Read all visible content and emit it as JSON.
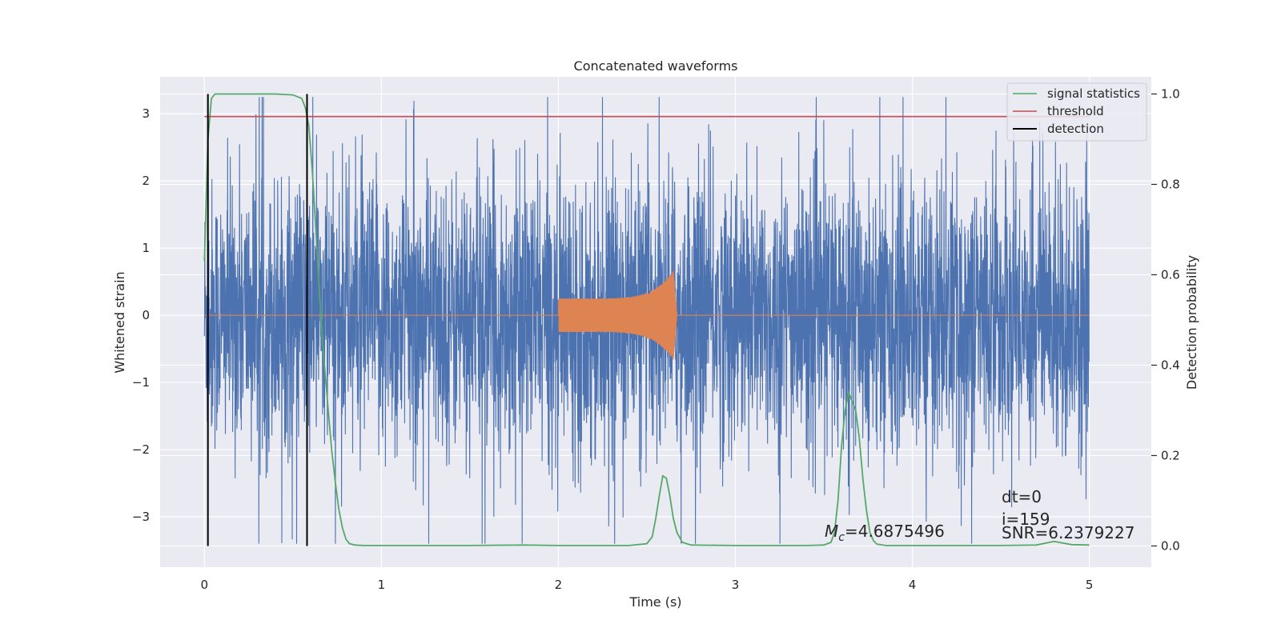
{
  "chart_data": {
    "type": "line",
    "title": "Concatenated waveforms",
    "xlabel": "Time (s)",
    "ylabel": "Whitened strain",
    "y2label": "Detection probability",
    "xlim": [
      -0.25,
      5.35
    ],
    "ylim": [
      -3.75,
      3.55
    ],
    "y2lim": [
      -0.047,
      1.038
    ],
    "x_ticks": [
      0,
      1,
      2,
      3,
      4,
      5
    ],
    "y_ticks": [
      -3,
      -2,
      -1,
      0,
      1,
      2,
      3
    ],
    "y2_ticks": [
      0.0,
      0.2,
      0.4,
      0.6,
      0.8,
      1.0
    ],
    "x_tick_labels": [
      "0",
      "1",
      "2",
      "3",
      "4",
      "5"
    ],
    "y_tick_labels": [
      "−3",
      "−2",
      "−1",
      "0",
      "1",
      "2",
      "3"
    ],
    "y2_tick_labels": [
      "0.0",
      "0.2",
      "0.4",
      "0.6",
      "0.8",
      "1.0"
    ],
    "grid": true,
    "legend_position": "top-right",
    "series": [
      {
        "name": "signal statistics",
        "color": "#55a868",
        "axis": "right",
        "x": [
          0.0,
          0.02,
          0.04,
          0.06,
          0.08,
          0.1,
          0.15,
          0.2,
          0.3,
          0.4,
          0.5,
          0.55,
          0.57,
          0.59,
          0.61,
          0.63,
          0.65,
          0.67,
          0.7,
          0.72,
          0.74,
          0.76,
          0.78,
          0.8,
          0.82,
          0.85,
          0.9,
          1.0,
          1.5,
          1.8,
          2.0,
          2.4,
          2.5,
          2.53,
          2.55,
          2.57,
          2.59,
          2.61,
          2.63,
          2.65,
          2.67,
          2.7,
          2.75,
          3.0,
          3.4,
          3.5,
          3.54,
          3.56,
          3.58,
          3.6,
          3.62,
          3.64,
          3.66,
          3.68,
          3.7,
          3.72,
          3.74,
          3.76,
          3.78,
          3.8,
          3.85,
          4.0,
          4.5,
          4.7,
          4.8,
          4.9,
          5.0
        ],
        "values": [
          0.63,
          0.9,
          0.99,
          1.0,
          1.0,
          1.0,
          1.0,
          1.0,
          1.0,
          1.0,
          0.998,
          0.99,
          0.97,
          0.93,
          0.83,
          0.7,
          0.56,
          0.44,
          0.3,
          0.21,
          0.14,
          0.08,
          0.04,
          0.015,
          0.005,
          0.002,
          0.001,
          0.001,
          0.001,
          0.002,
          0.001,
          0.001,
          0.005,
          0.02,
          0.06,
          0.11,
          0.155,
          0.15,
          0.11,
          0.06,
          0.03,
          0.008,
          0.002,
          0.001,
          0.001,
          0.002,
          0.008,
          0.03,
          0.1,
          0.22,
          0.3,
          0.34,
          0.32,
          0.3,
          0.24,
          0.15,
          0.08,
          0.03,
          0.012,
          0.004,
          0.001,
          0.001,
          0.001,
          0.002,
          0.01,
          0.003,
          0.002
        ]
      },
      {
        "name": "threshold",
        "color": "#c44e52",
        "axis": "right",
        "x": [
          0.0,
          5.0
        ],
        "values": [
          0.95,
          0.95
        ]
      },
      {
        "name": "detection",
        "color": "#000000",
        "axis": "right",
        "vlines": [
          0.02,
          0.58
        ],
        "range": [
          0.0,
          1.0
        ]
      }
    ],
    "noise_series": {
      "color": "#4c72b0",
      "x_range": [
        0.0,
        5.0
      ],
      "envelope": [
        -3.4,
        3.25
      ]
    },
    "injected_signal": {
      "color": "#dd8452",
      "x_range": [
        2.0,
        2.67
      ],
      "amplitude_start": 0.25,
      "amplitude_peak": 0.75
    },
    "annotations": {
      "mc_prefix": "M",
      "mc_sub": "c",
      "mc_value": "=4.6875496",
      "dt": "dt=0",
      "i": "i=159",
      "snr": "SNR=6.2379227"
    }
  }
}
